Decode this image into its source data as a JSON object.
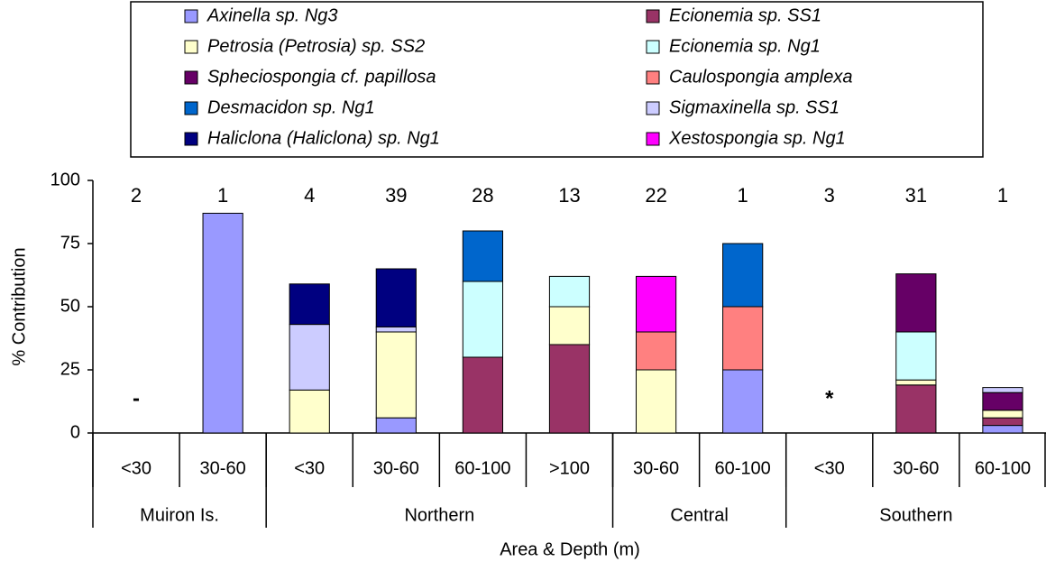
{
  "chart_data": {
    "type": "stacked_bar",
    "y_label": "% Contribution",
    "x_label": "Area & Depth (m)",
    "categories": [
      "<30",
      "30-60",
      "<30",
      "30-60",
      "60-100",
      ">100",
      "30-60",
      "60-100",
      "<30",
      "30-60",
      "60-100"
    ],
    "groups": [
      {
        "label": "Muiron Is.",
        "count": 2
      },
      {
        "label": "Northern",
        "count": 4
      },
      {
        "label": "Central",
        "count": 2
      },
      {
        "label": "Southern",
        "count": 3
      }
    ],
    "sample_sizes": [
      2,
      1,
      4,
      39,
      28,
      13,
      22,
      1,
      3,
      31,
      1
    ],
    "markers": [
      "-",
      null,
      null,
      null,
      null,
      null,
      null,
      null,
      "*",
      null,
      null
    ],
    "ylim": [
      0,
      100
    ],
    "yticks": [
      0,
      25,
      50,
      75,
      100
    ],
    "series": [
      {
        "name": "Axinella sp. Ng3",
        "color": "#9999ff",
        "values": [
          null,
          87,
          null,
          6,
          null,
          null,
          null,
          25,
          null,
          null,
          3
        ]
      },
      {
        "name": "Ecionemia sp. SS1",
        "color": "#993366",
        "values": [
          null,
          null,
          null,
          null,
          30,
          35,
          null,
          null,
          null,
          19,
          3
        ]
      },
      {
        "name": "Petrosia (Petrosia) sp. SS2",
        "color": "#ffffcc",
        "values": [
          null,
          null,
          17,
          34,
          null,
          15,
          25,
          null,
          null,
          2,
          3
        ]
      },
      {
        "name": "Ecionemia sp. Ng1",
        "color": "#ccffff",
        "values": [
          null,
          null,
          null,
          null,
          30,
          12,
          null,
          null,
          null,
          19,
          null
        ]
      },
      {
        "name": "Spheciospongia cf. papillosa",
        "color": "#660066",
        "values": [
          null,
          null,
          null,
          null,
          null,
          null,
          null,
          null,
          null,
          23,
          7
        ]
      },
      {
        "name": "Caulospongia amplexa",
        "color": "#ff8080",
        "values": [
          null,
          null,
          null,
          null,
          null,
          null,
          15,
          25,
          null,
          null,
          null
        ]
      },
      {
        "name": "Desmacidon sp. Ng1",
        "color": "#0066cc",
        "values": [
          null,
          null,
          null,
          null,
          20,
          null,
          null,
          25,
          null,
          null,
          null
        ]
      },
      {
        "name": "Sigmaxinella sp. SS1",
        "color": "#ccccff",
        "values": [
          null,
          null,
          26,
          2,
          null,
          null,
          null,
          null,
          null,
          null,
          2
        ]
      },
      {
        "name": "Haliclona (Haliclona) sp. Ng1",
        "color": "#000080",
        "values": [
          null,
          null,
          16,
          23,
          null,
          null,
          null,
          null,
          null,
          null,
          null
        ]
      },
      {
        "name": "Xestospongia sp. Ng1",
        "color": "#ff00ff",
        "values": [
          null,
          null,
          null,
          null,
          null,
          null,
          22,
          null,
          null,
          null,
          null
        ]
      }
    ]
  }
}
